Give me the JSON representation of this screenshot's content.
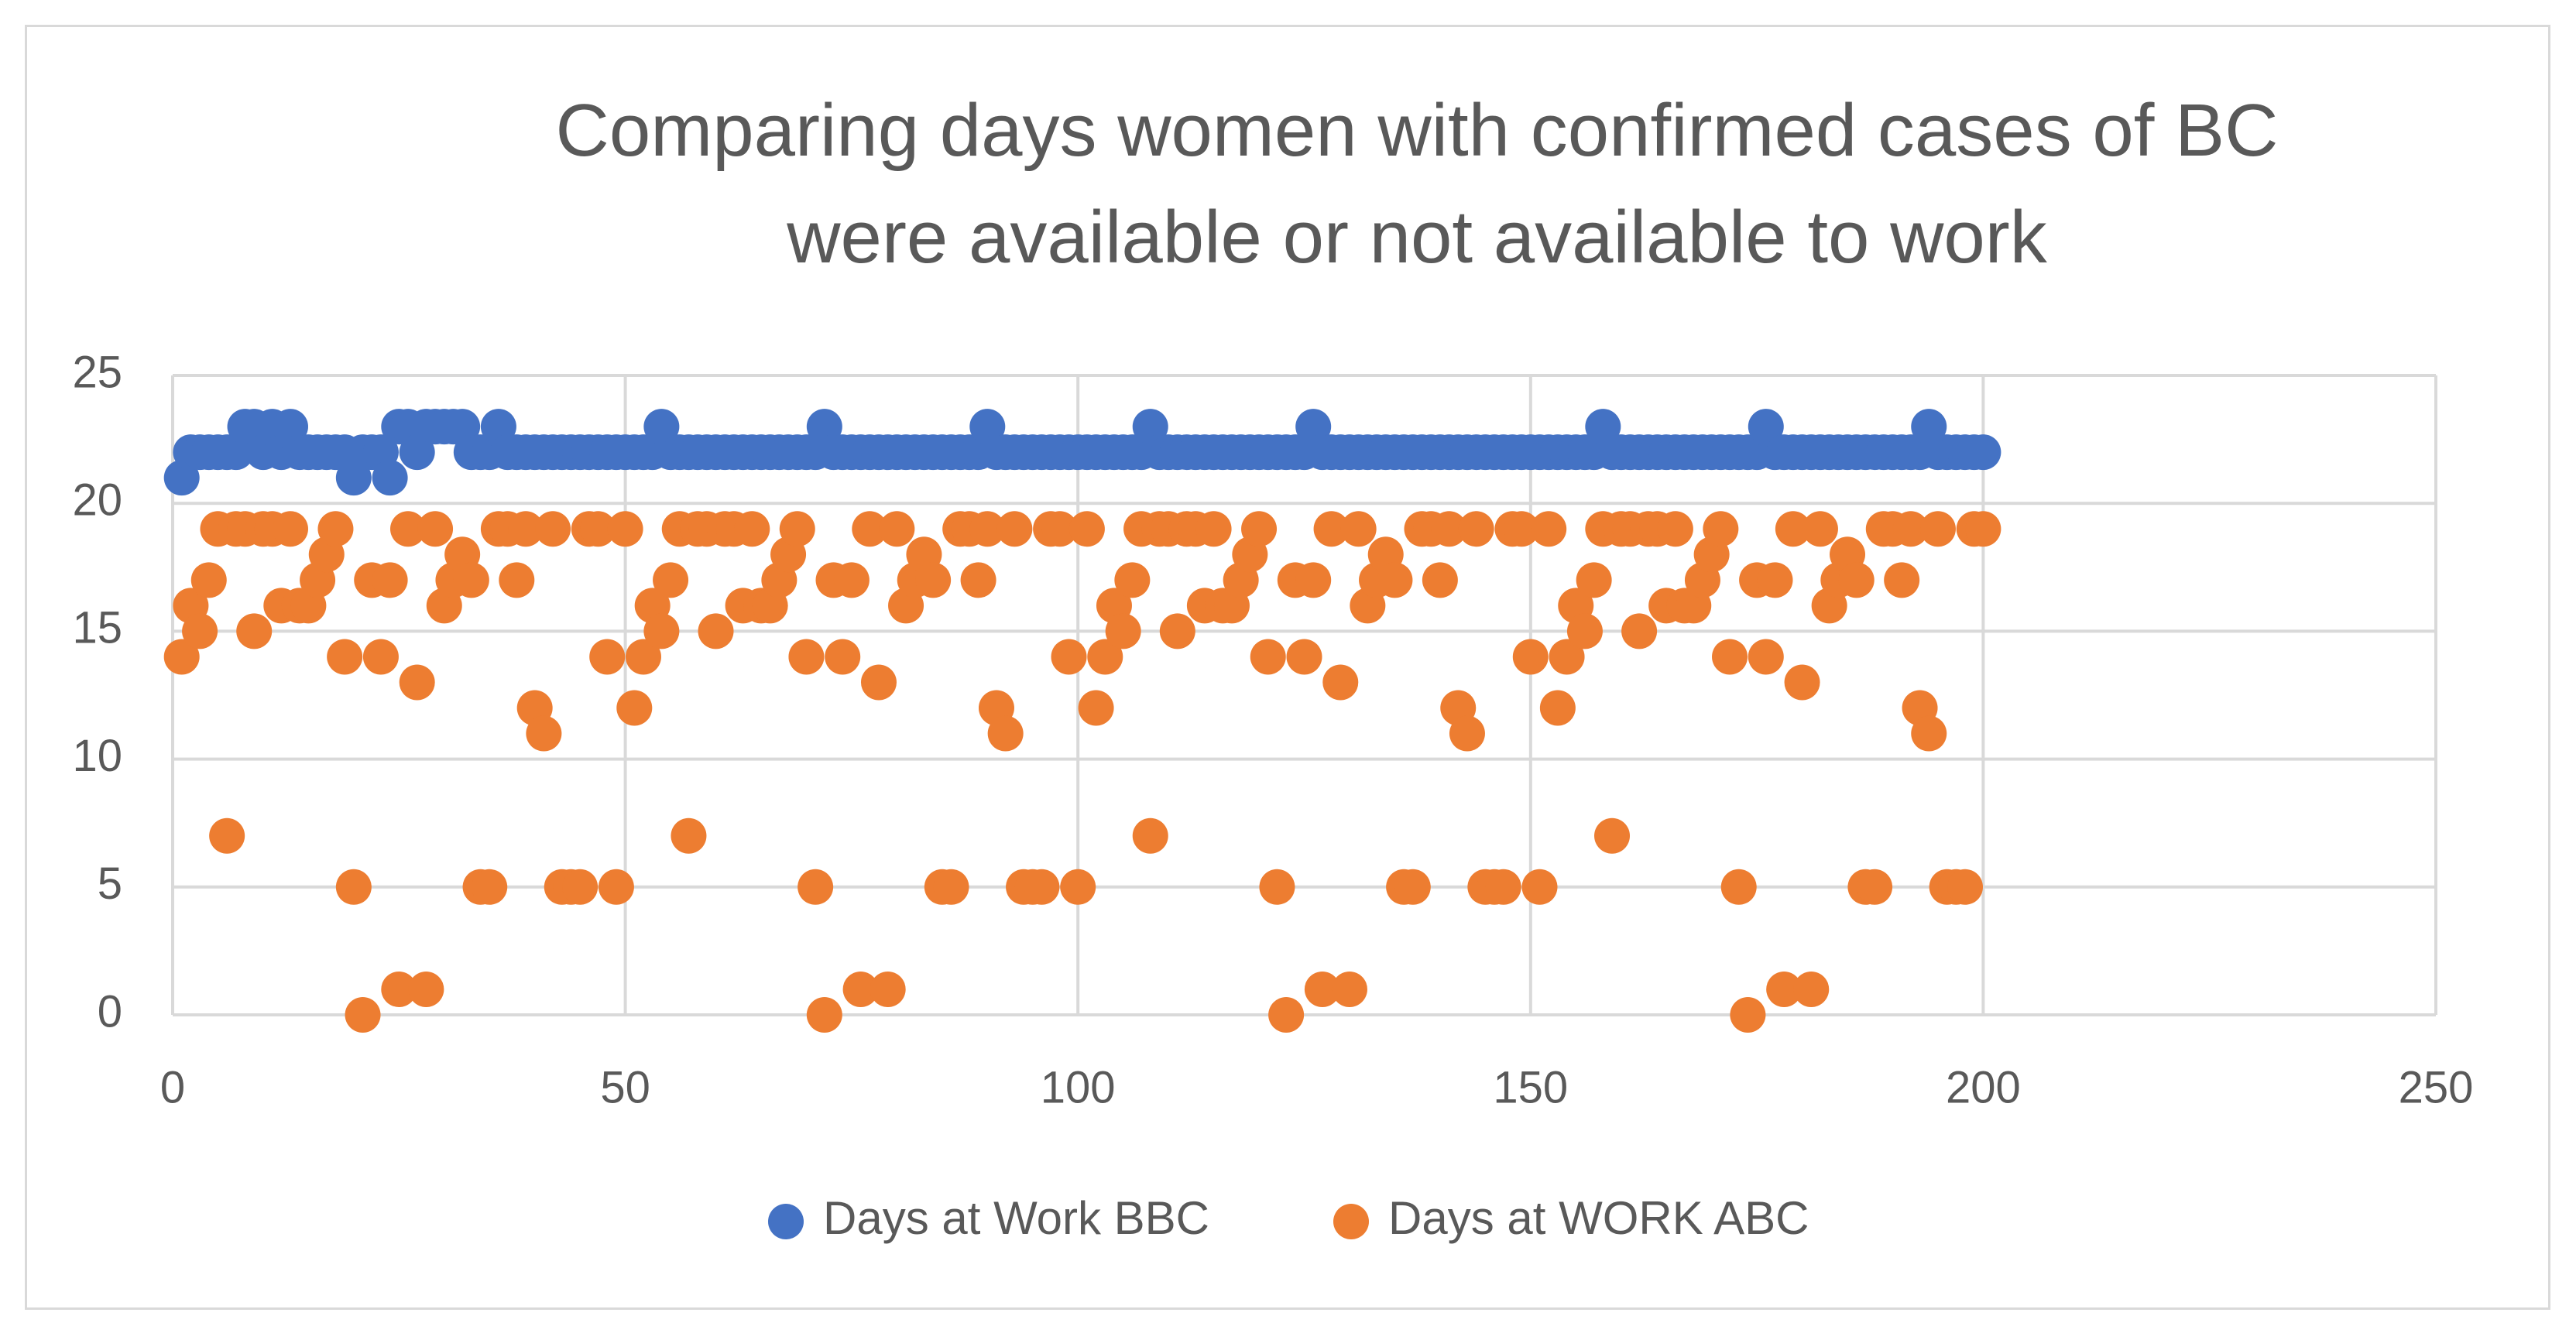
{
  "chart_data": {
    "type": "scatter",
    "title": "Comparing days women with confirmed cases of BC\nwere available or not available to work",
    "x": [
      1,
      2,
      3,
      4,
      5,
      6,
      7,
      8,
      9,
      10,
      11,
      12,
      13,
      14,
      15,
      16,
      17,
      18,
      19,
      20,
      21,
      22,
      23,
      24,
      25,
      26,
      27,
      28,
      29,
      30,
      31,
      32,
      33,
      34,
      35,
      36,
      37,
      38,
      39,
      40,
      41,
      42,
      43,
      44,
      45,
      46,
      47,
      48,
      49,
      50,
      51,
      52,
      53,
      54,
      55,
      56,
      57,
      58,
      59,
      60,
      61,
      62,
      63,
      64,
      65,
      66,
      67,
      68,
      69,
      70,
      71,
      72,
      73,
      74,
      75,
      76,
      77,
      78,
      79,
      80,
      81,
      82,
      83,
      84,
      85,
      86,
      87,
      88,
      89,
      90,
      91,
      92,
      93,
      94,
      95,
      96,
      97,
      98,
      99,
      100,
      101,
      102,
      103,
      104,
      105,
      106,
      107,
      108,
      109,
      110,
      111,
      112,
      113,
      114,
      115,
      116,
      117,
      118,
      119,
      120,
      121,
      122,
      123,
      124,
      125,
      126,
      127,
      128,
      129,
      130,
      131,
      132,
      133,
      134,
      135,
      136,
      137,
      138,
      139,
      140,
      141,
      142,
      143,
      144,
      145,
      146,
      147,
      148,
      149,
      150,
      151,
      152,
      153,
      154,
      155,
      156,
      157,
      158,
      159,
      160,
      161,
      162,
      163,
      164,
      165,
      166,
      167,
      168,
      169,
      170,
      171,
      172,
      173,
      174,
      175,
      176,
      177,
      178,
      179,
      180,
      181,
      182,
      183,
      184,
      185,
      186,
      187,
      188,
      189,
      190,
      191,
      192,
      193,
      194,
      195,
      196,
      197,
      198,
      199,
      200
    ],
    "series": [
      {
        "name": "Days at Work BBC",
        "color": "#4472c4",
        "values": [
          21,
          22,
          22,
          22,
          22,
          22,
          22,
          23,
          23,
          22,
          23,
          22,
          23,
          22,
          22,
          22,
          22,
          22,
          22,
          21,
          22,
          22,
          22,
          21,
          23,
          23,
          22,
          23,
          23,
          23,
          23,
          23,
          22,
          22,
          22,
          23,
          22,
          22,
          22,
          22,
          22,
          22,
          22,
          22,
          22,
          22,
          22,
          22,
          22,
          22,
          22,
          22,
          22,
          23,
          22,
          22,
          22,
          22,
          22,
          22,
          22,
          22,
          22,
          22,
          22,
          22,
          22,
          22,
          22,
          22,
          22,
          23,
          22,
          22,
          22,
          22,
          22,
          22,
          22,
          22,
          22,
          22,
          22,
          22,
          22,
          22,
          22,
          22,
          22,
          23,
          22,
          22,
          22,
          22,
          22,
          22,
          22,
          22,
          22,
          22,
          22,
          22,
          22,
          22,
          22,
          22,
          22,
          23,
          22,
          22,
          22,
          22,
          22,
          22,
          22,
          22,
          22,
          22,
          22,
          22,
          22,
          22,
          22,
          22,
          22,
          23,
          22,
          22,
          22,
          22,
          22,
          22,
          22,
          22,
          22,
          22,
          22,
          22,
          22,
          22,
          22,
          22,
          22,
          22,
          22,
          22,
          22,
          22,
          22,
          22,
          22,
          22,
          22,
          22,
          22,
          22,
          22,
          23,
          22,
          22,
          22,
          22,
          22,
          22,
          22,
          22,
          22,
          22,
          22,
          22,
          22,
          22,
          22,
          22,
          22,
          23,
          22,
          22,
          22,
          22,
          22,
          22,
          22,
          22,
          22,
          22,
          22,
          22,
          22,
          22,
          22,
          22,
          22,
          23,
          22,
          22,
          22,
          22,
          22,
          22
        ]
      },
      {
        "name": "Days at WORK ABC",
        "color": "#ed7d31",
        "values": [
          14,
          16,
          15,
          17,
          19,
          7,
          19,
          19,
          15,
          19,
          19,
          16,
          19,
          16,
          16,
          17,
          18,
          19,
          14,
          5,
          0,
          17,
          14,
          17,
          1,
          19,
          13,
          1,
          19,
          16,
          17,
          18,
          17,
          5,
          5,
          19,
          19,
          17,
          19,
          12,
          11,
          19,
          5,
          5,
          5,
          19,
          19,
          14,
          5,
          19,
          12,
          14,
          16,
          15,
          17,
          19,
          7,
          19,
          19,
          15,
          19,
          19,
          16,
          19,
          16,
          16,
          17,
          18,
          19,
          14,
          5,
          0,
          17,
          14,
          17,
          1,
          19,
          13,
          1,
          19,
          16,
          17,
          18,
          17,
          5,
          5,
          19,
          19,
          17,
          19,
          12,
          11,
          19,
          5,
          5,
          5,
          19,
          19,
          14,
          5,
          19,
          12,
          14,
          16,
          15,
          17,
          19,
          7,
          19,
          19,
          15,
          19,
          19,
          16,
          19,
          16,
          16,
          17,
          18,
          19,
          14,
          5,
          0,
          17,
          14,
          17,
          1,
          19,
          13,
          1,
          19,
          16,
          17,
          18,
          17,
          5,
          5,
          19,
          19,
          17,
          19,
          12,
          11,
          19,
          5,
          5,
          5,
          19,
          19,
          14,
          5,
          19,
          12,
          14,
          16,
          15,
          17,
          19,
          7,
          19,
          19,
          15,
          19,
          19,
          16,
          19,
          16,
          16,
          17,
          18,
          19,
          14,
          5,
          0,
          17,
          14,
          17,
          1,
          19,
          13,
          1,
          19,
          16,
          17,
          18,
          17,
          5,
          5,
          19,
          19,
          17,
          19,
          12,
          11,
          19,
          5,
          5,
          5,
          19,
          19
        ]
      }
    ],
    "xlim": [
      0,
      250
    ],
    "xticks": [
      0,
      50,
      100,
      150,
      200,
      250
    ],
    "ylim": [
      0,
      25
    ],
    "yticks": [
      0,
      5,
      10,
      15,
      20,
      25
    ],
    "grid": true,
    "legend": "bottom"
  }
}
